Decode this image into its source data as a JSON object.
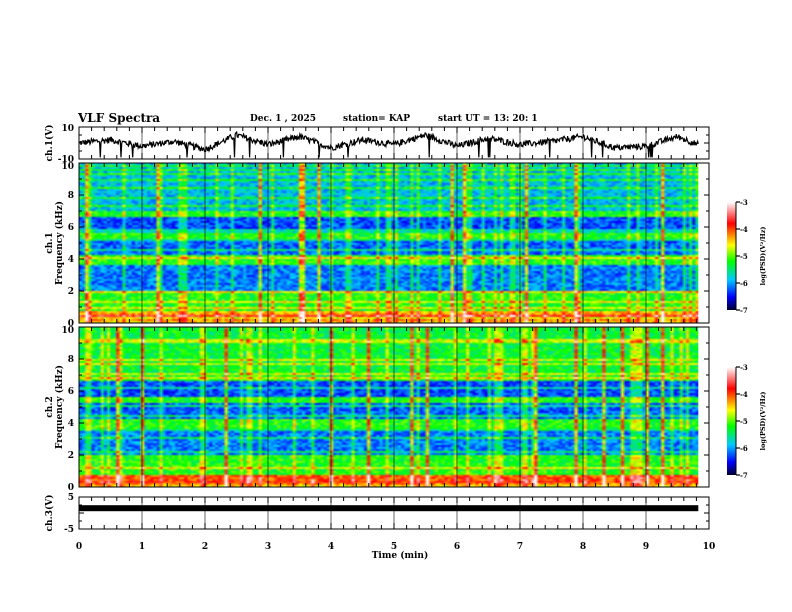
{
  "header": {
    "title": "VLF Spectra",
    "date": "Dec. 1 , 2025",
    "station": "station= KAP",
    "start": "start UT =   13: 20: 1"
  },
  "colors": {
    "trace": "#000000",
    "colormap": [
      "#000040",
      "#0000ff",
      "#00ffff",
      "#00ff00",
      "#ffff00",
      "#ff8000",
      "#ff0000",
      "#ffffff"
    ]
  },
  "chart_data": [
    {
      "type": "line",
      "name": "ch1-waveform",
      "ylabel": "ch.1(V)",
      "ylim": [
        -10,
        10
      ],
      "yticks": [
        "10",
        "-10"
      ],
      "x_range_min": [
        0,
        9.83
      ],
      "trace_description_values": {
        "x": [
          0,
          0.5,
          1,
          1.5,
          2,
          2.5,
          3,
          3.5,
          4,
          4.5,
          5,
          5.5,
          6,
          6.5,
          7,
          7.5,
          8,
          8.5,
          9,
          9.5,
          9.83
        ],
        "y": [
          0,
          2,
          -2,
          1,
          -4,
          5,
          -1,
          4,
          -3,
          2,
          -1,
          5,
          -2,
          3,
          -1,
          1,
          4,
          -3,
          -2,
          4,
          -1
        ]
      }
    },
    {
      "type": "heatmap",
      "name": "ch1-spectrogram",
      "ylabel": "ch.1 Frequency (kHz)",
      "ylim": [
        0,
        10
      ],
      "yticks": [
        "0",
        "2",
        "4",
        "6",
        "8",
        "10"
      ],
      "colorbar": {
        "label": "log(PSD)(V²/Hz)",
        "range": [
          -7,
          -3
        ],
        "ticks": [
          "-3",
          "-4",
          "-5",
          "-6",
          "-7"
        ]
      }
    },
    {
      "type": "heatmap",
      "name": "ch2-spectrogram",
      "ylabel": "ch.2 Frequency (kHz)",
      "ylim": [
        0,
        10
      ],
      "yticks": [
        "0",
        "2",
        "4",
        "6",
        "8",
        "10"
      ],
      "colorbar": {
        "label": "log(PSD)(V²/Hz)",
        "range": [
          -7,
          -3
        ],
        "ticks": [
          "-3",
          "-4",
          "-5",
          "-6",
          "-7"
        ]
      }
    },
    {
      "type": "line",
      "name": "ch3-waveform",
      "ylabel": "ch.3(V)",
      "ylim": [
        -5,
        5
      ],
      "yticks": [
        "5",
        "-5"
      ],
      "level": 1.5,
      "xlabel": "Time  (min)",
      "xlim": [
        0,
        10
      ],
      "xticks": [
        "0",
        "1",
        "2",
        "3",
        "4",
        "5",
        "6",
        "7",
        "8",
        "9",
        "10"
      ]
    }
  ]
}
